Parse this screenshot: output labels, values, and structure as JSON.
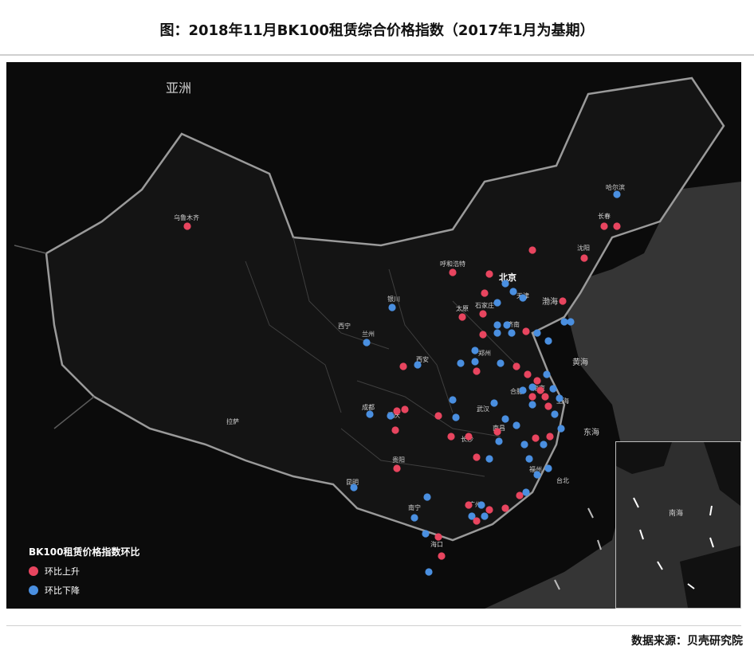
{
  "title": "图：2018年11月BK100租赁综合价格指数（2017年1月为基期）",
  "source": "数据来源：贝壳研究院",
  "colors": {
    "up": "#e8455f",
    "down": "#4a8fe0",
    "map_bg": "#0b0b0b",
    "land": "#1a1a1a",
    "sea": "#3a3a3a"
  },
  "legend": {
    "title": "BK100租赁价格指数环比",
    "up_label": "环比上升",
    "down_label": "环比下降"
  },
  "map_labels": {
    "asia": "亚洲",
    "beijing": "北京",
    "bohai": "渤海",
    "huanghai": "黄海",
    "donghai": "东海",
    "nanhai": "南海",
    "urumqi": "乌鲁木齐",
    "harbin": "哈尔滨",
    "changchun": "长春",
    "shenyang": "沈阳",
    "huhehaote": "呼和浩特",
    "taiyuan": "太原",
    "shijiazhuang": "石家庄",
    "tianjin": "天津",
    "jinan": "济南",
    "yinchuan": "银川",
    "xining": "西宁",
    "lanzhou": "兰州",
    "xian": "西安",
    "zhengzhou": "郑州",
    "hefei": "合肥",
    "shanghai": "上海",
    "nanjing": "南京",
    "wuhan": "武汉",
    "chengdu": "成都",
    "chongqing": "重庆",
    "changsha": "长沙",
    "nanchang": "南昌",
    "guiyang": "贵阳",
    "kunming": "昆明",
    "nanning": "南宁",
    "guangzhou": "广州",
    "fuzhou": "福州",
    "taibei": "台北",
    "haikou": "海口",
    "lasa": "拉萨"
  },
  "cities": [
    {
      "trend": "up"
    },
    {
      "trend": "down"
    },
    {
      "trend": "up"
    },
    {
      "trend": "up"
    },
    {
      "trend": "up"
    },
    {
      "trend": "up"
    },
    {
      "trend": "up"
    },
    {
      "trend": "up"
    },
    {
      "trend": "down"
    },
    {
      "trend": "down"
    }
  ]
}
